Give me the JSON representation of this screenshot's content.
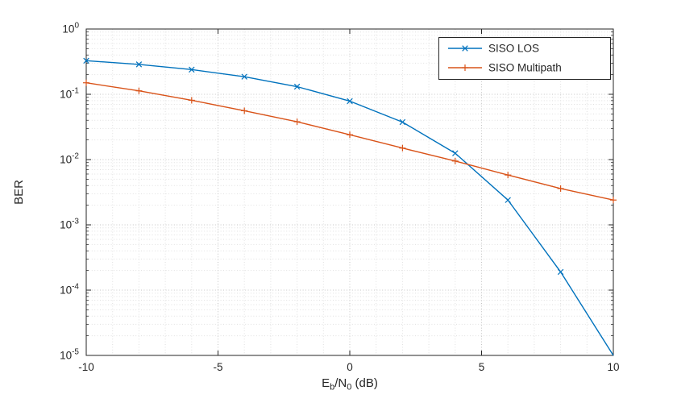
{
  "chart_data": {
    "type": "line",
    "title": "",
    "xlabel": "Eb/N0 (dB)",
    "xlabel_parts": [
      {
        "text": "E"
      },
      {
        "text": "b",
        "sub": true
      },
      {
        "text": "/N"
      },
      {
        "text": "0",
        "sub": true
      },
      {
        "text": " (dB)"
      }
    ],
    "ylabel": "BER",
    "xlim": [
      -10,
      10
    ],
    "x_major_ticks": [
      -10,
      -5,
      0,
      5,
      10
    ],
    "x_tick_labels": [
      "-10",
      "-5",
      "0",
      "5",
      "10"
    ],
    "x_minor_step": 1,
    "y_scale": "log",
    "y_exponent_range": [
      -5,
      0
    ],
    "y_tick_base": "10",
    "y_tick_exponents": [
      0,
      -1,
      -2,
      -3,
      -4,
      -5
    ],
    "x": [
      -10,
      -8,
      -6,
      -4,
      -2,
      0,
      2,
      4,
      6,
      8,
      10
    ],
    "series": [
      {
        "name": "SISO LOS",
        "color": "#0072BD",
        "marker": "x",
        "values": [
          0.327,
          0.287,
          0.239,
          0.186,
          0.131,
          0.0786,
          0.0375,
          0.0125,
          0.0024,
          0.00019,
          1e-05
        ]
      },
      {
        "name": "SISO Multipath",
        "color": "#D95319",
        "marker": "+",
        "values": [
          0.15,
          0.113,
          0.081,
          0.056,
          0.038,
          0.024,
          0.015,
          0.0095,
          0.0058,
          0.0036,
          0.0024
        ]
      }
    ],
    "legend": {
      "entries": [
        "SISO LOS",
        "SISO Multipath"
      ],
      "position": "top-right"
    },
    "grid": {
      "major": true,
      "minor": true
    }
  },
  "style": {
    "axis_color": "#262626",
    "major_grid_color": "#c4c4c4",
    "minor_grid_color": "#e0e0e0",
    "background": "#ffffff",
    "plot_background": "#ffffff",
    "legend_border_color": "#262626",
    "legend_background": "#ffffff"
  }
}
